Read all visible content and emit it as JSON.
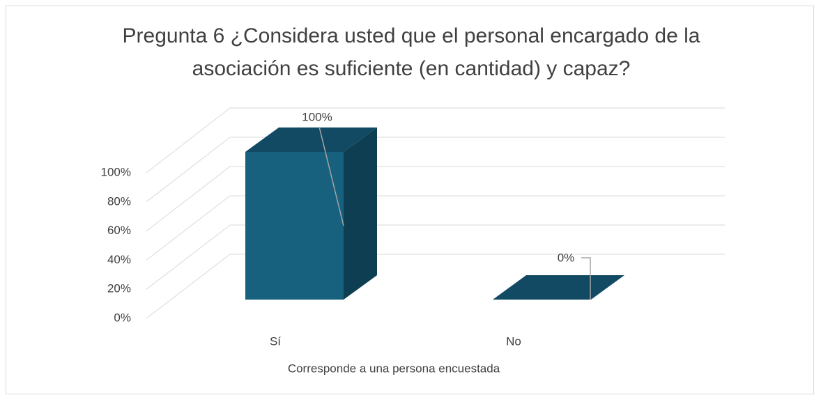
{
  "chart_data": {
    "type": "bar3d",
    "title": "Pregunta 6 ¿Considera usted que el personal encargado de la asociación es suficiente (en cantidad) y capaz?",
    "x_label": "Corresponde a una persona encuestada",
    "categories": [
      "Sí",
      "No"
    ],
    "values": [
      100,
      0
    ],
    "value_labels": [
      "100%",
      "0%"
    ],
    "color": "#17607e",
    "ylim": [
      0,
      100
    ],
    "yticks": [
      {
        "value": 0,
        "label": "0%"
      },
      {
        "value": 20,
        "label": "20%"
      },
      {
        "value": 40,
        "label": "40%"
      },
      {
        "value": 60,
        "label": "60%"
      },
      {
        "value": 80,
        "label": "80%"
      },
      {
        "value": 100,
        "label": "100%"
      }
    ],
    "grid": true
  }
}
